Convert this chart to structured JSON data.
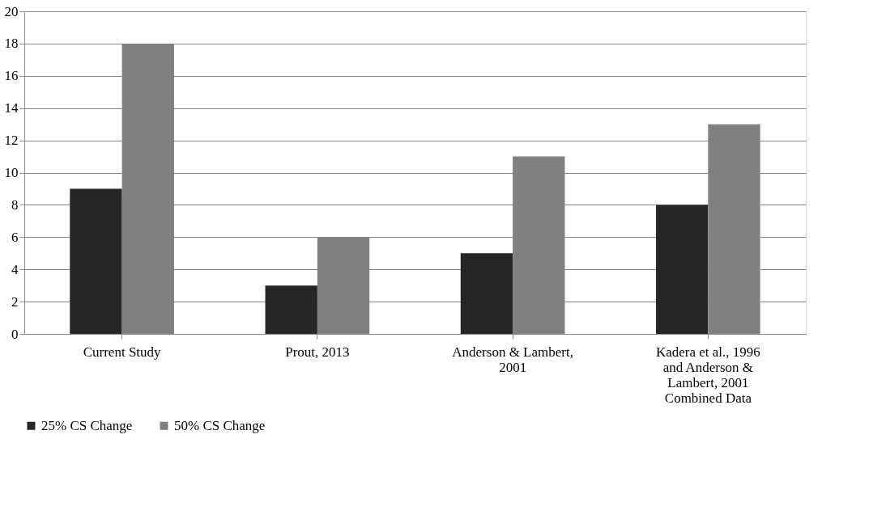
{
  "chart_data": {
    "type": "bar",
    "categories": [
      "Current Study",
      "Prout, 2013",
      "Anderson & Lambert, 2001",
      "Kadera et al., 1996 and Anderson & Lambert, 2001 Combined Data"
    ],
    "series": [
      {
        "name": "25% CS Change",
        "color": "#262626",
        "values": [
          9,
          3,
          5,
          8
        ]
      },
      {
        "name": "50% CS Change",
        "color": "#808080",
        "values": [
          18,
          6,
          11,
          13
        ]
      }
    ],
    "ylim": [
      0,
      20
    ],
    "yticks": [
      0,
      2,
      4,
      6,
      8,
      10,
      12,
      14,
      16,
      18,
      20
    ],
    "grid": "y",
    "legend": "bottom"
  }
}
